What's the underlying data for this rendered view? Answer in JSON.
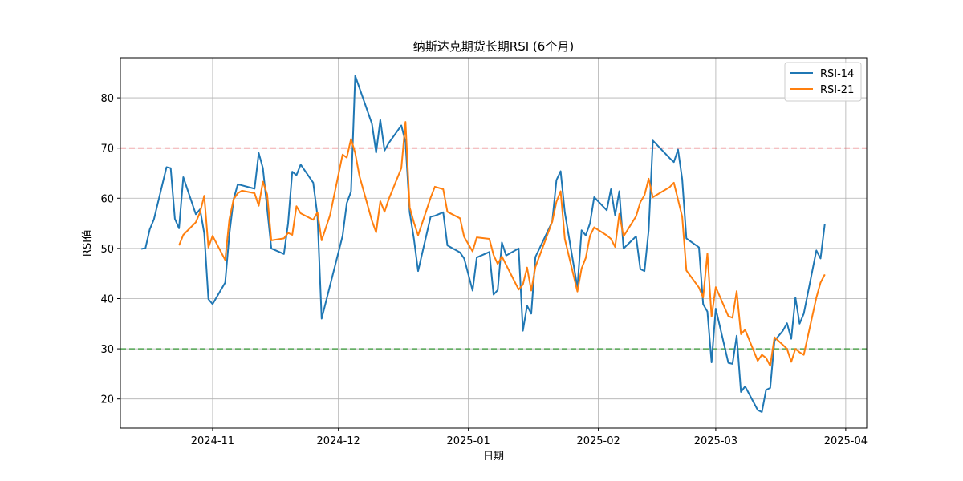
{
  "chart_data": {
    "type": "line",
    "title": "纳斯达克期货长期RSI (6个月)",
    "xlabel": "日期",
    "ylabel": "RSI值",
    "xlim": [
      "2024-10-10",
      "2025-04-06"
    ],
    "ylim": [
      14.2,
      88.0
    ],
    "x_ticks": [
      "2024-11-01",
      "2024-12-01",
      "2025-01-01",
      "2025-02-01",
      "2025-03-01",
      "2025-04-01"
    ],
    "x_tick_labels": [
      "2024-11",
      "2024-12",
      "2025-01",
      "2025-02",
      "2025-03",
      "2025-04"
    ],
    "y_ticks": [
      20,
      30,
      40,
      50,
      60,
      70,
      80
    ],
    "grid": true,
    "legend_position": "top-right",
    "reference_lines": [
      {
        "value": 70,
        "color": "#e8474a",
        "style": "dashed"
      },
      {
        "value": 30,
        "color": "#3a9a3a",
        "style": "dashed"
      }
    ],
    "series": [
      {
        "name": "RSI-14",
        "color": "#1f77b4",
        "points": [
          [
            "2024-10-15",
            49.9
          ],
          [
            "2024-10-16",
            50.1
          ],
          [
            "2024-10-17",
            53.8
          ],
          [
            "2024-10-18",
            55.8
          ],
          [
            "2024-10-21",
            66.2
          ],
          [
            "2024-10-22",
            66.0
          ],
          [
            "2024-10-23",
            55.9
          ],
          [
            "2024-10-24",
            54.0
          ],
          [
            "2024-10-25",
            64.2
          ],
          [
            "2024-10-28",
            56.8
          ],
          [
            "2024-10-29",
            57.8
          ],
          [
            "2024-10-30",
            53.0
          ],
          [
            "2024-10-31",
            39.9
          ],
          [
            "2024-11-01",
            38.9
          ],
          [
            "2024-11-04",
            43.2
          ],
          [
            "2024-11-05",
            52.8
          ],
          [
            "2024-11-06",
            59.8
          ],
          [
            "2024-11-07",
            62.8
          ],
          [
            "2024-11-11",
            61.9
          ],
          [
            "2024-11-12",
            69.0
          ],
          [
            "2024-11-13",
            66.0
          ],
          [
            "2024-11-15",
            50.0
          ],
          [
            "2024-11-18",
            48.9
          ],
          [
            "2024-11-19",
            55.0
          ],
          [
            "2024-11-20",
            65.3
          ],
          [
            "2024-11-21",
            64.6
          ],
          [
            "2024-11-22",
            66.7
          ],
          [
            "2024-11-25",
            63.1
          ],
          [
            "2024-11-26",
            56.5
          ],
          [
            "2024-11-27",
            36.0
          ],
          [
            "2024-12-02",
            52.5
          ],
          [
            "2024-12-03",
            59.0
          ],
          [
            "2024-12-04",
            61.3
          ],
          [
            "2024-12-05",
            84.4
          ],
          [
            "2024-12-09",
            74.8
          ],
          [
            "2024-12-10",
            69.1
          ],
          [
            "2024-12-11",
            75.6
          ],
          [
            "2024-12-12",
            69.5
          ],
          [
            "2024-12-13",
            71.0
          ],
          [
            "2024-12-16",
            74.5
          ],
          [
            "2024-12-17",
            71.2
          ],
          [
            "2024-12-18",
            57.2
          ],
          [
            "2024-12-19",
            52.0
          ],
          [
            "2024-12-20",
            45.5
          ],
          [
            "2024-12-23",
            56.3
          ],
          [
            "2024-12-24",
            56.5
          ],
          [
            "2024-12-26",
            57.2
          ],
          [
            "2024-12-27",
            50.6
          ],
          [
            "2024-12-30",
            49.2
          ],
          [
            "2024-12-31",
            48.0
          ],
          [
            "2025-01-02",
            41.6
          ],
          [
            "2025-01-03",
            48.2
          ],
          [
            "2025-01-06",
            49.3
          ],
          [
            "2025-01-07",
            40.8
          ],
          [
            "2025-01-08",
            41.7
          ],
          [
            "2025-01-09",
            51.2
          ],
          [
            "2025-01-10",
            48.6
          ],
          [
            "2025-01-13",
            50.0
          ],
          [
            "2025-01-14",
            33.6
          ],
          [
            "2025-01-15",
            38.6
          ],
          [
            "2025-01-16",
            37.0
          ],
          [
            "2025-01-17",
            48.3
          ],
          [
            "2025-01-21",
            55.3
          ],
          [
            "2025-01-22",
            63.6
          ],
          [
            "2025-01-23",
            65.4
          ],
          [
            "2025-01-24",
            57.2
          ],
          [
            "2025-01-27",
            42.2
          ],
          [
            "2025-01-28",
            53.6
          ],
          [
            "2025-01-29",
            52.6
          ],
          [
            "2025-01-30",
            55.0
          ],
          [
            "2025-01-31",
            60.2
          ],
          [
            "2025-02-03",
            57.6
          ],
          [
            "2025-02-04",
            61.8
          ],
          [
            "2025-02-05",
            56.6
          ],
          [
            "2025-02-06",
            61.4
          ],
          [
            "2025-02-07",
            50.0
          ],
          [
            "2025-02-10",
            52.4
          ],
          [
            "2025-02-11",
            45.9
          ],
          [
            "2025-02-12",
            45.5
          ],
          [
            "2025-02-13",
            53.6
          ],
          [
            "2025-02-14",
            71.5
          ],
          [
            "2025-02-18",
            68.0
          ],
          [
            "2025-02-19",
            67.2
          ],
          [
            "2025-02-20",
            69.7
          ],
          [
            "2025-02-21",
            63.8
          ],
          [
            "2025-02-22",
            52.0
          ],
          [
            "2025-02-25",
            50.2
          ],
          [
            "2025-02-26",
            38.9
          ],
          [
            "2025-02-27",
            37.4
          ],
          [
            "2025-02-28",
            27.3
          ],
          [
            "2025-03-01",
            38.0
          ],
          [
            "2025-03-04",
            27.2
          ],
          [
            "2025-03-05",
            27.0
          ],
          [
            "2025-03-06",
            32.6
          ],
          [
            "2025-03-07",
            21.4
          ],
          [
            "2025-03-08",
            22.5
          ],
          [
            "2025-03-11",
            17.8
          ],
          [
            "2025-03-12",
            17.4
          ],
          [
            "2025-03-13",
            21.8
          ],
          [
            "2025-03-14",
            22.2
          ],
          [
            "2025-03-15",
            31.6
          ],
          [
            "2025-03-17",
            33.6
          ],
          [
            "2025-03-18",
            35.1
          ],
          [
            "2025-03-19",
            32.0
          ],
          [
            "2025-03-20",
            40.2
          ],
          [
            "2025-03-21",
            35.0
          ],
          [
            "2025-03-22",
            37.0
          ],
          [
            "2025-03-25",
            49.6
          ],
          [
            "2025-03-26",
            48.0
          ],
          [
            "2025-03-27",
            54.9
          ]
        ]
      },
      {
        "name": "RSI-21",
        "color": "#ff7f0e",
        "points": [
          [
            "2024-10-24",
            50.6
          ],
          [
            "2024-10-25",
            52.7
          ],
          [
            "2024-10-28",
            55.2
          ],
          [
            "2024-10-29",
            57.2
          ],
          [
            "2024-10-30",
            60.5
          ],
          [
            "2024-10-31",
            50.2
          ],
          [
            "2024-11-01",
            52.5
          ],
          [
            "2024-11-04",
            47.7
          ],
          [
            "2024-11-05",
            55.8
          ],
          [
            "2024-11-06",
            59.8
          ],
          [
            "2024-11-07",
            61.0
          ],
          [
            "2024-11-08",
            61.5
          ],
          [
            "2024-11-11",
            61.0
          ],
          [
            "2024-11-12",
            58.5
          ],
          [
            "2024-11-13",
            63.3
          ],
          [
            "2024-11-14",
            60.8
          ],
          [
            "2024-11-15",
            51.6
          ],
          [
            "2024-11-18",
            52.0
          ],
          [
            "2024-11-19",
            53.1
          ],
          [
            "2024-11-20",
            52.7
          ],
          [
            "2024-11-21",
            58.4
          ],
          [
            "2024-11-22",
            57.0
          ],
          [
            "2024-11-25",
            55.7
          ],
          [
            "2024-11-26",
            57.2
          ],
          [
            "2024-11-27",
            51.6
          ],
          [
            "2024-11-29",
            56.6
          ],
          [
            "2024-12-02",
            68.7
          ],
          [
            "2024-12-03",
            68.1
          ],
          [
            "2024-12-04",
            71.8
          ],
          [
            "2024-12-05",
            69.0
          ],
          [
            "2024-12-06",
            64.5
          ],
          [
            "2024-12-09",
            55.5
          ],
          [
            "2024-12-10",
            53.2
          ],
          [
            "2024-12-11",
            59.4
          ],
          [
            "2024-12-12",
            57.3
          ],
          [
            "2024-12-13",
            59.8
          ],
          [
            "2024-12-16",
            66.0
          ],
          [
            "2024-12-17",
            75.2
          ],
          [
            "2024-12-18",
            58.2
          ],
          [
            "2024-12-19",
            55.2
          ],
          [
            "2024-12-20",
            52.6
          ],
          [
            "2024-12-23",
            60.1
          ],
          [
            "2024-12-24",
            62.3
          ],
          [
            "2024-12-26",
            61.8
          ],
          [
            "2024-12-27",
            57.3
          ],
          [
            "2024-12-30",
            56.0
          ],
          [
            "2024-12-31",
            52.3
          ],
          [
            "2025-01-02",
            49.4
          ],
          [
            "2025-01-03",
            52.2
          ],
          [
            "2025-01-06",
            51.9
          ],
          [
            "2025-01-07",
            48.7
          ],
          [
            "2025-01-08",
            46.9
          ],
          [
            "2025-01-09",
            48.4
          ],
          [
            "2025-01-13",
            41.8
          ],
          [
            "2025-01-14",
            42.8
          ],
          [
            "2025-01-15",
            46.2
          ],
          [
            "2025-01-16",
            41.6
          ],
          [
            "2025-01-17",
            46.3
          ],
          [
            "2025-01-21",
            55.3
          ],
          [
            "2025-01-22",
            59.3
          ],
          [
            "2025-01-23",
            61.4
          ],
          [
            "2025-01-24",
            51.9
          ],
          [
            "2025-01-27",
            41.4
          ],
          [
            "2025-01-28",
            46.0
          ],
          [
            "2025-01-29",
            48.1
          ],
          [
            "2025-01-30",
            52.5
          ],
          [
            "2025-01-31",
            54.2
          ],
          [
            "2025-02-03",
            52.6
          ],
          [
            "2025-02-04",
            51.9
          ],
          [
            "2025-02-05",
            50.3
          ],
          [
            "2025-02-06",
            56.9
          ],
          [
            "2025-02-07",
            52.4
          ],
          [
            "2025-02-10",
            56.4
          ],
          [
            "2025-02-11",
            59.2
          ],
          [
            "2025-02-12",
            60.6
          ],
          [
            "2025-02-13",
            63.9
          ],
          [
            "2025-02-14",
            60.2
          ],
          [
            "2025-02-18",
            62.2
          ],
          [
            "2025-02-19",
            63.1
          ],
          [
            "2025-02-21",
            56.3
          ],
          [
            "2025-02-22",
            45.6
          ],
          [
            "2025-02-25",
            42.2
          ],
          [
            "2025-02-26",
            40.2
          ],
          [
            "2025-02-27",
            49.0
          ],
          [
            "2025-02-28",
            36.4
          ],
          [
            "2025-03-01",
            42.3
          ],
          [
            "2025-03-04",
            36.5
          ],
          [
            "2025-03-05",
            36.2
          ],
          [
            "2025-03-06",
            41.5
          ],
          [
            "2025-03-07",
            32.9
          ],
          [
            "2025-03-08",
            33.8
          ],
          [
            "2025-03-11",
            27.6
          ],
          [
            "2025-03-12",
            28.8
          ],
          [
            "2025-03-13",
            28.2
          ],
          [
            "2025-03-14",
            26.6
          ],
          [
            "2025-03-15",
            32.3
          ],
          [
            "2025-03-17",
            30.8
          ],
          [
            "2025-03-18",
            30.0
          ],
          [
            "2025-03-19",
            27.4
          ],
          [
            "2025-03-20",
            30.0
          ],
          [
            "2025-03-21",
            29.3
          ],
          [
            "2025-03-22",
            28.8
          ],
          [
            "2025-03-25",
            40.2
          ],
          [
            "2025-03-26",
            43.2
          ],
          [
            "2025-03-27",
            44.8
          ]
        ]
      }
    ]
  }
}
